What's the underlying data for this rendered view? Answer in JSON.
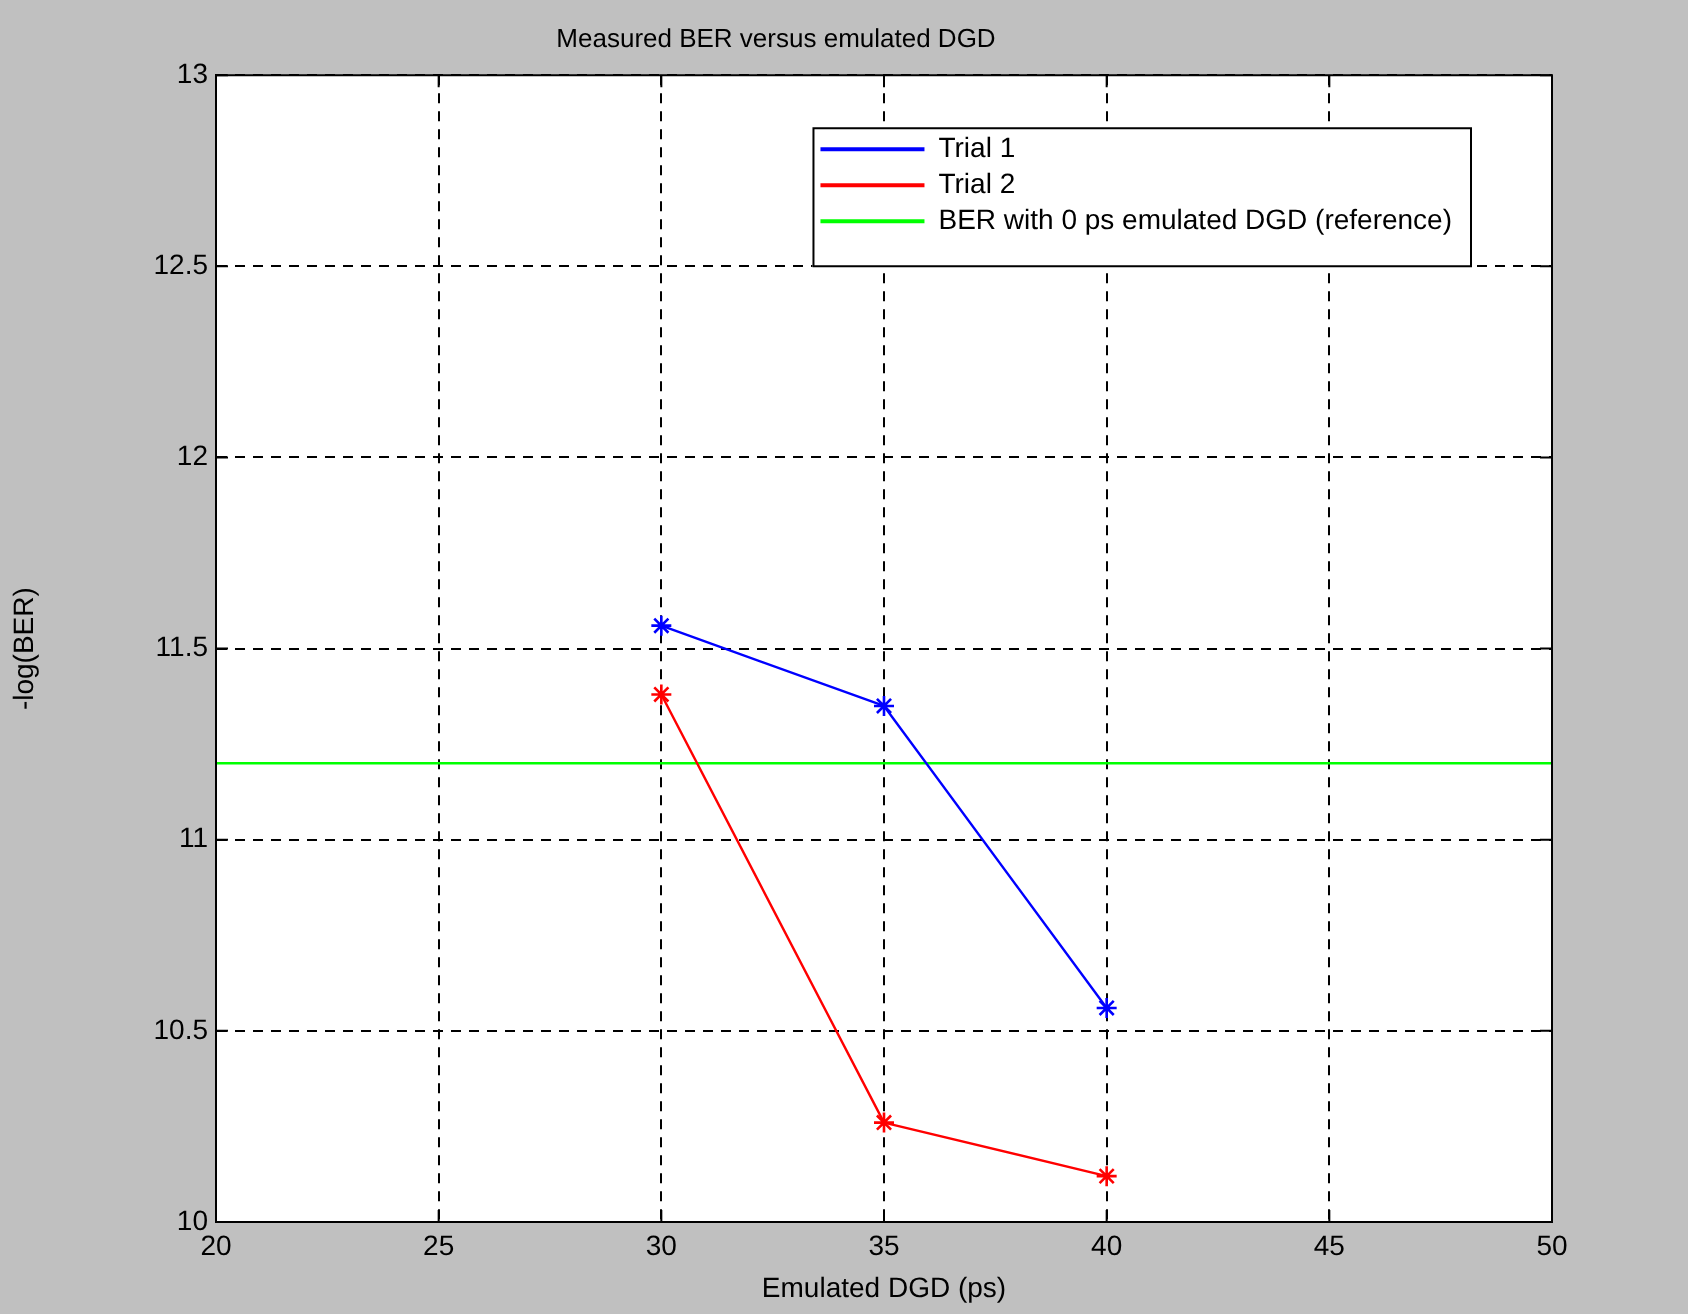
{
  "chart_data": {
    "type": "line",
    "title": "Measured BER versus emulated DGD",
    "xlabel": "Emulated DGD (ps)",
    "ylabel": "-log(BER)",
    "xlim": [
      20,
      50
    ],
    "xticks": [
      20,
      25,
      30,
      35,
      40,
      45,
      50
    ],
    "ylim": [
      10,
      13
    ],
    "yticks": [
      10,
      10.5,
      11,
      11.5,
      12,
      12.5,
      13
    ],
    "grid": true,
    "legend": "top right",
    "marker": "cross",
    "line_style": "solid",
    "series": [
      {
        "name": "Trial 1",
        "color": "#0000ff",
        "x": [
          30,
          35,
          40
        ],
        "values": [
          11.56,
          11.35,
          10.56
        ]
      },
      {
        "name": "Trial 2",
        "color": "#ff0000",
        "x": [
          30,
          35,
          40
        ],
        "values": [
          11.38,
          10.26,
          10.12
        ]
      },
      {
        "name": "BER with 0 ps emulated DGD (reference)",
        "color": "#00ff00",
        "x": [
          20,
          50
        ],
        "values": [
          11.2,
          11.2
        ],
        "marker": "none"
      }
    ]
  }
}
